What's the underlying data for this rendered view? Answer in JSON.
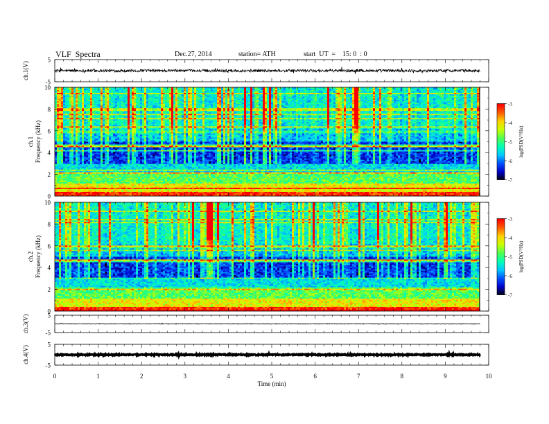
{
  "header": {
    "title": "VLF  Spectra",
    "date": "Dec.27, 2014",
    "station": "station= ATH",
    "start": "start  UT  =    15: 0  : 0"
  },
  "chart_data": [
    {
      "type": "line",
      "panel": "ch1-waveform",
      "ylabel": "ch.1(V)",
      "ylim": [
        -5,
        5
      ],
      "yticks": [
        "5",
        "-5"
      ],
      "xlim": [
        0,
        10
      ],
      "x_end": 9.8,
      "level": 0,
      "noise_amplitude": 0.6
    },
    {
      "type": "heatmap",
      "panel": "ch1-spectrogram",
      "ylabel_top": "ch.1",
      "ylabel": "Frequency  (kHz)",
      "ylim": [
        0,
        10
      ],
      "yticks": [
        "0",
        "2",
        "4",
        "6",
        "8",
        "10"
      ],
      "xlim": [
        0,
        10
      ],
      "x_end": 9.8,
      "colorbar": {
        "label": "log(PSD(V²/Hz)",
        "ticks": [
          "-3",
          "-4",
          "-5",
          "-6",
          "-7"
        ],
        "range": [
          -7,
          -3
        ]
      },
      "colormap": [
        "#000000",
        "#0000c8",
        "#0050ff",
        "#00c8ff",
        "#00ffb4",
        "#50ff50",
        "#c8ff00",
        "#ffd200",
        "#ff5a00",
        "#ff0000",
        "#ffffff"
      ]
    },
    {
      "type": "heatmap",
      "panel": "ch2-spectrogram",
      "ylabel_top": "ch.2",
      "ylabel": "Frequency  (kHz)",
      "ylim": [
        0,
        10
      ],
      "yticks": [
        "0",
        "2",
        "4",
        "6",
        "8",
        "10"
      ],
      "xlim": [
        0,
        10
      ],
      "x_end": 9.8,
      "colorbar": {
        "label": "log(PSD(V²/Hz)",
        "ticks": [
          "-3",
          "-4",
          "-5",
          "-6",
          "-7"
        ],
        "range": [
          -7,
          -3
        ]
      }
    },
    {
      "type": "line",
      "panel": "ch3-waveform",
      "ylabel": "ch.3(V)",
      "ylim": [
        -5,
        5
      ],
      "yticks": [
        "5",
        "-5"
      ],
      "xlim": [
        0,
        10
      ],
      "x_end": 9.8,
      "level": 0,
      "noise_amplitude": 0.15
    },
    {
      "type": "line",
      "panel": "ch4-waveform",
      "ylabel": "ch.4(V)",
      "ylim": [
        -5,
        5
      ],
      "yticks": [
        "5",
        "-5"
      ],
      "xlim": [
        0,
        10
      ],
      "x_end": 9.8,
      "level": 0,
      "noise_amplitude": 0.25
    }
  ],
  "xaxis": {
    "label": "Time  (min)",
    "ticks": [
      "0",
      "1",
      "2",
      "3",
      "4",
      "5",
      "6",
      "7",
      "8",
      "9",
      "10"
    ]
  }
}
